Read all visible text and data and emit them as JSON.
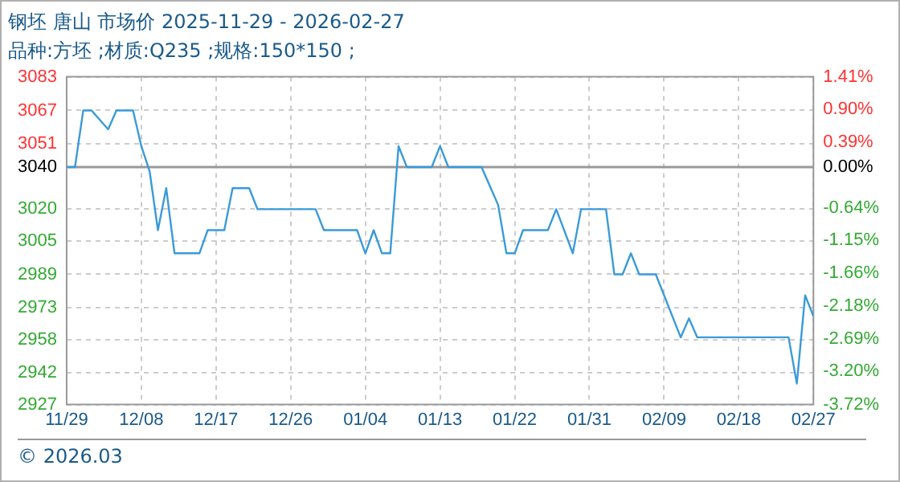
{
  "chart_data": {
    "type": "line",
    "title": "钢坯 唐山 市场价 2025-11-29 - 2026-02-27",
    "subtitle": "品种:方坯 ;材质:Q235 ;规格:150*150 ;",
    "x": [
      "2025-11-29",
      "2025-11-30",
      "2025-12-01",
      "2025-12-02",
      "2025-12-04",
      "2025-12-05",
      "2025-12-07",
      "2025-12-08",
      "2025-12-09",
      "2025-12-10",
      "2025-12-11",
      "2025-12-12",
      "2025-12-15",
      "2025-12-16",
      "2025-12-18",
      "2025-12-19",
      "2025-12-21",
      "2025-12-22",
      "2025-12-29",
      "2025-12-30",
      "2026-01-03",
      "2026-01-04",
      "2026-01-05",
      "2026-01-06",
      "2026-01-07",
      "2026-01-08",
      "2026-01-09",
      "2026-01-12",
      "2026-01-13",
      "2026-01-14",
      "2026-01-18",
      "2026-01-19",
      "2026-01-20",
      "2026-01-21",
      "2026-01-22",
      "2026-01-23",
      "2026-01-26",
      "2026-01-27",
      "2026-01-29",
      "2026-01-30",
      "2026-02-02",
      "2026-02-03",
      "2026-02-04",
      "2026-02-05",
      "2026-02-06",
      "2026-02-08",
      "2026-02-11",
      "2026-02-12",
      "2026-02-13",
      "2026-02-24",
      "2026-02-25",
      "2026-02-26",
      "2026-02-27"
    ],
    "series": [
      {
        "color": "#3a9ad9",
        "values": [
          3040,
          3040,
          3067,
          3067,
          3058,
          3067,
          3067,
          3050,
          3038,
          3010,
          3030,
          2999,
          2999,
          3010,
          3010,
          3030,
          3030,
          3020,
          3020,
          3010,
          3010,
          2999,
          3010,
          2999,
          2999,
          3050,
          3040,
          3040,
          3050,
          3040,
          3040,
          3031,
          3022,
          2999,
          2999,
          3010,
          3010,
          3020,
          2999,
          3020,
          3020,
          2989,
          2989,
          2999,
          2989,
          2989,
          2959,
          2968,
          2959,
          2959,
          2937,
          2979,
          2969
        ]
      }
    ],
    "xlim": [
      "2025-11-29",
      "2026-02-27"
    ],
    "xticks": [
      {
        "value": "2025-11-29",
        "label": "11/29"
      },
      {
        "value": "2025-12-08",
        "label": "12/08"
      },
      {
        "value": "2025-12-17",
        "label": "12/17"
      },
      {
        "value": "2025-12-26",
        "label": "12/26"
      },
      {
        "value": "2026-01-04",
        "label": "01/04"
      },
      {
        "value": "2026-01-13",
        "label": "01/13"
      },
      {
        "value": "2026-01-22",
        "label": "01/22"
      },
      {
        "value": "2026-01-31",
        "label": "01/31"
      },
      {
        "value": "2026-02-09",
        "label": "02/09"
      },
      {
        "value": "2026-02-18",
        "label": "02/18"
      },
      {
        "value": "2026-02-27",
        "label": "02/27"
      }
    ],
    "ylim": [
      2927,
      3083
    ],
    "yticks": [
      2927,
      2942,
      2958,
      2973,
      2989,
      3005,
      3020,
      3040,
      3051,
      3067,
      3083
    ],
    "y2lim": [
      -3.72,
      1.41
    ],
    "y2ticks": [
      {
        "value": -3.72,
        "label": "-3.72%"
      },
      {
        "value": -3.2,
        "label": "-3.20%"
      },
      {
        "value": -2.69,
        "label": "-2.69%"
      },
      {
        "value": -2.18,
        "label": "-2.18%"
      },
      {
        "value": -1.66,
        "label": "-1.66%"
      },
      {
        "value": -1.15,
        "label": "-1.15%"
      },
      {
        "value": -0.64,
        "label": "-0.64%"
      },
      {
        "value": 0,
        "label": "0.00%"
      },
      {
        "value": 0.39,
        "label": "0.39%"
      },
      {
        "value": 0.9,
        "label": "0.90%"
      },
      {
        "value": 1.41,
        "label": "1.41%"
      }
    ],
    "ref_lines": [
      {
        "axis": "y",
        "value": 3040,
        "color": "#999999"
      }
    ],
    "grid": true,
    "legend": false,
    "marker": "none",
    "line_style": "solid",
    "annotations": [
      "© 2026.03"
    ]
  }
}
